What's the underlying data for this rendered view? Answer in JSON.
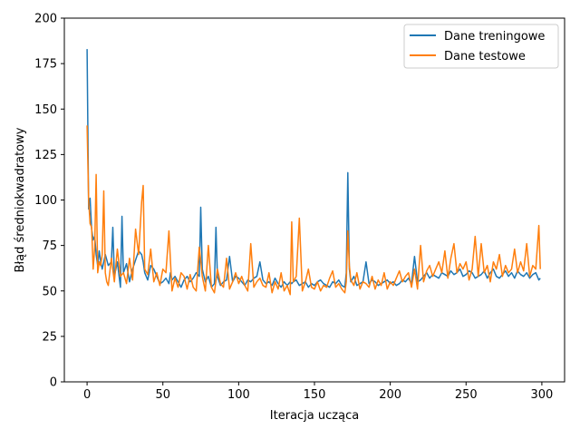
{
  "chart_data": {
    "type": "line",
    "title": "",
    "xlabel": "Iteracja ucząca",
    "ylabel": "Błąd średniokwadratowy",
    "xlim": [
      -15,
      315
    ],
    "ylim": [
      0,
      200
    ],
    "xticks": [
      0,
      50,
      100,
      150,
      200,
      250,
      300
    ],
    "xtick_labels": [
      "0",
      "50",
      "100",
      "150",
      "200",
      "250",
      "300"
    ],
    "yticks": [
      0,
      25,
      50,
      75,
      100,
      125,
      150,
      175,
      200
    ],
    "ytick_labels": [
      "0",
      "25",
      "50",
      "75",
      "100",
      "125",
      "150",
      "175",
      "200"
    ],
    "grid": false,
    "legend_position": "upper right",
    "series": [
      {
        "name": "Dane treningowe",
        "color": "#1f77b4",
        "x": [
          0,
          1,
          2,
          3,
          4,
          5,
          6,
          7,
          8,
          9,
          10,
          12,
          14,
          16,
          17,
          18,
          20,
          22,
          23,
          24,
          26,
          28,
          30,
          32,
          34,
          36,
          37,
          38,
          40,
          42,
          44,
          46,
          48,
          50,
          52,
          54,
          55,
          56,
          58,
          60,
          62,
          64,
          66,
          68,
          70,
          72,
          74,
          75,
          76,
          78,
          80,
          82,
          84,
          85,
          86,
          88,
          90,
          92,
          94,
          96,
          98,
          100,
          102,
          104,
          106,
          108,
          110,
          112,
          114,
          116,
          118,
          120,
          122,
          124,
          126,
          128,
          130,
          132,
          134,
          135,
          136,
          138,
          140,
          142,
          144,
          146,
          148,
          150,
          152,
          154,
          156,
          158,
          160,
          162,
          164,
          166,
          168,
          170,
          171,
          172,
          173,
          174,
          176,
          178,
          180,
          182,
          184,
          186,
          188,
          190,
          192,
          194,
          196,
          198,
          200,
          202,
          204,
          206,
          208,
          210,
          212,
          214,
          216,
          218,
          220,
          222,
          224,
          226,
          228,
          230,
          232,
          234,
          236,
          238,
          240,
          242,
          244,
          246,
          248,
          250,
          252,
          254,
          256,
          258,
          260,
          262,
          264,
          266,
          268,
          270,
          272,
          274,
          276,
          278,
          280,
          282,
          284,
          286,
          288,
          290,
          292,
          294,
          296,
          298,
          299
        ],
        "values": [
          183,
          95,
          101,
          84,
          78,
          80,
          70,
          64,
          72,
          66,
          62,
          70,
          64,
          66,
          85,
          58,
          66,
          52,
          91,
          60,
          65,
          55,
          62,
          67,
          72,
          70,
          66,
          60,
          56,
          64,
          62,
          58,
          54,
          55,
          57,
          54,
          60,
          56,
          58,
          55,
          52,
          56,
          58,
          55,
          57,
          60,
          58,
          96,
          62,
          55,
          58,
          52,
          54,
          85,
          58,
          53,
          55,
          56,
          69,
          55,
          58,
          57,
          55,
          53,
          56,
          55,
          57,
          58,
          66,
          56,
          54,
          55,
          53,
          57,
          54,
          52,
          55,
          53,
          55,
          54,
          55,
          56,
          53,
          54,
          55,
          52,
          54,
          53,
          55,
          56,
          54,
          53,
          52,
          55,
          54,
          56,
          53,
          52,
          60,
          115,
          62,
          55,
          58,
          53,
          54,
          55,
          66,
          54,
          56,
          55,
          53,
          54,
          55,
          56,
          54,
          55,
          53,
          54,
          56,
          55,
          57,
          54,
          69,
          55,
          56,
          58,
          60,
          57,
          59,
          58,
          57,
          60,
          59,
          58,
          61,
          59,
          60,
          62,
          58,
          59,
          61,
          60,
          57,
          58,
          59,
          61,
          57,
          60,
          62,
          58,
          57,
          59,
          61,
          58,
          60,
          57,
          61,
          59,
          58,
          60,
          57,
          59,
          60,
          56,
          57
        ]
      },
      {
        "name": "Dane testowe",
        "color": "#ff7f0e",
        "x": [
          0,
          1,
          2,
          3,
          4,
          5,
          6,
          7,
          8,
          9,
          10,
          11,
          12,
          13,
          14,
          16,
          18,
          20,
          22,
          24,
          26,
          28,
          30,
          32,
          34,
          36,
          37,
          38,
          40,
          42,
          44,
          46,
          48,
          50,
          52,
          54,
          56,
          58,
          60,
          62,
          64,
          66,
          68,
          70,
          72,
          74,
          75,
          76,
          78,
          80,
          82,
          84,
          86,
          88,
          90,
          92,
          94,
          96,
          98,
          100,
          102,
          104,
          106,
          108,
          110,
          112,
          114,
          116,
          118,
          120,
          122,
          124,
          126,
          128,
          130,
          132,
          134,
          135,
          136,
          138,
          140,
          142,
          144,
          146,
          148,
          150,
          152,
          154,
          156,
          158,
          160,
          162,
          164,
          166,
          168,
          170,
          171,
          172,
          173,
          174,
          176,
          178,
          180,
          182,
          184,
          186,
          188,
          190,
          192,
          194,
          196,
          198,
          200,
          202,
          204,
          206,
          208,
          210,
          212,
          214,
          216,
          218,
          220,
          222,
          224,
          226,
          228,
          230,
          232,
          234,
          236,
          238,
          240,
          242,
          244,
          246,
          248,
          250,
          252,
          254,
          256,
          258,
          260,
          262,
          264,
          266,
          268,
          270,
          272,
          274,
          276,
          278,
          280,
          282,
          284,
          286,
          288,
          290,
          292,
          294,
          296,
          298,
          299
        ],
        "values": [
          141,
          100,
          87,
          85,
          62,
          74,
          114,
          60,
          66,
          64,
          70,
          105,
          60,
          55,
          53,
          68,
          55,
          73,
          58,
          60,
          54,
          68,
          56,
          84,
          70,
          99,
          108,
          62,
          59,
          73,
          55,
          60,
          53,
          62,
          60,
          83,
          50,
          57,
          52,
          60,
          58,
          51,
          59,
          52,
          50,
          74,
          67,
          58,
          50,
          75,
          52,
          49,
          62,
          54,
          52,
          68,
          51,
          55,
          60,
          54,
          58,
          53,
          50,
          76,
          52,
          55,
          57,
          53,
          52,
          60,
          49,
          55,
          51,
          60,
          50,
          53,
          48,
          88,
          55,
          58,
          90,
          50,
          55,
          62,
          52,
          51,
          55,
          50,
          53,
          52,
          57,
          61,
          52,
          54,
          51,
          49,
          55,
          83,
          64,
          56,
          53,
          60,
          51,
          55,
          54,
          52,
          58,
          51,
          56,
          53,
          60,
          51,
          55,
          53,
          57,
          61,
          55,
          58,
          60,
          52,
          62,
          51,
          75,
          55,
          61,
          64,
          58,
          62,
          66,
          60,
          72,
          57,
          68,
          76,
          60,
          65,
          62,
          66,
          56,
          62,
          80,
          58,
          76,
          60,
          64,
          55,
          66,
          62,
          70,
          58,
          64,
          60,
          62,
          73,
          60,
          66,
          61,
          76,
          58,
          64,
          62,
          86,
          62
        ]
      }
    ]
  }
}
